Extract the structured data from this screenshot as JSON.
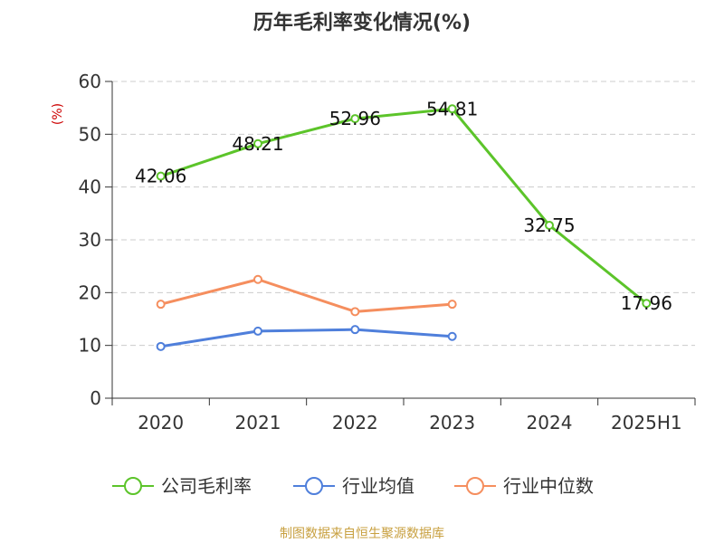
{
  "chart_data": {
    "type": "line",
    "title": "历年毛利率变化情况(%)",
    "unit_label": "(%)",
    "categories": [
      "2020",
      "2021",
      "2022",
      "2023",
      "2024",
      "2025H1"
    ],
    "ylim": [
      0,
      60
    ],
    "yticks": [
      0,
      10,
      20,
      30,
      40,
      50,
      60
    ],
    "grid": true,
    "legend_position": "bottom",
    "series": [
      {
        "name": "公司毛利率",
        "color": "#5cc42a",
        "values": [
          42.06,
          48.21,
          52.96,
          54.81,
          32.75,
          17.96
        ],
        "labels": [
          "42.06",
          "48.21",
          "52.96",
          "54.81",
          "32.75",
          "17.96"
        ]
      },
      {
        "name": "行业均值",
        "color": "#4f7fdb",
        "values": [
          9.8,
          12.7,
          13.0,
          11.7,
          null,
          null
        ]
      },
      {
        "name": "行业中位数",
        "color": "#f58e5e",
        "values": [
          17.8,
          22.5,
          16.4,
          17.8,
          null,
          null
        ]
      }
    ],
    "source": "制图数据来自恒生聚源数据库"
  }
}
